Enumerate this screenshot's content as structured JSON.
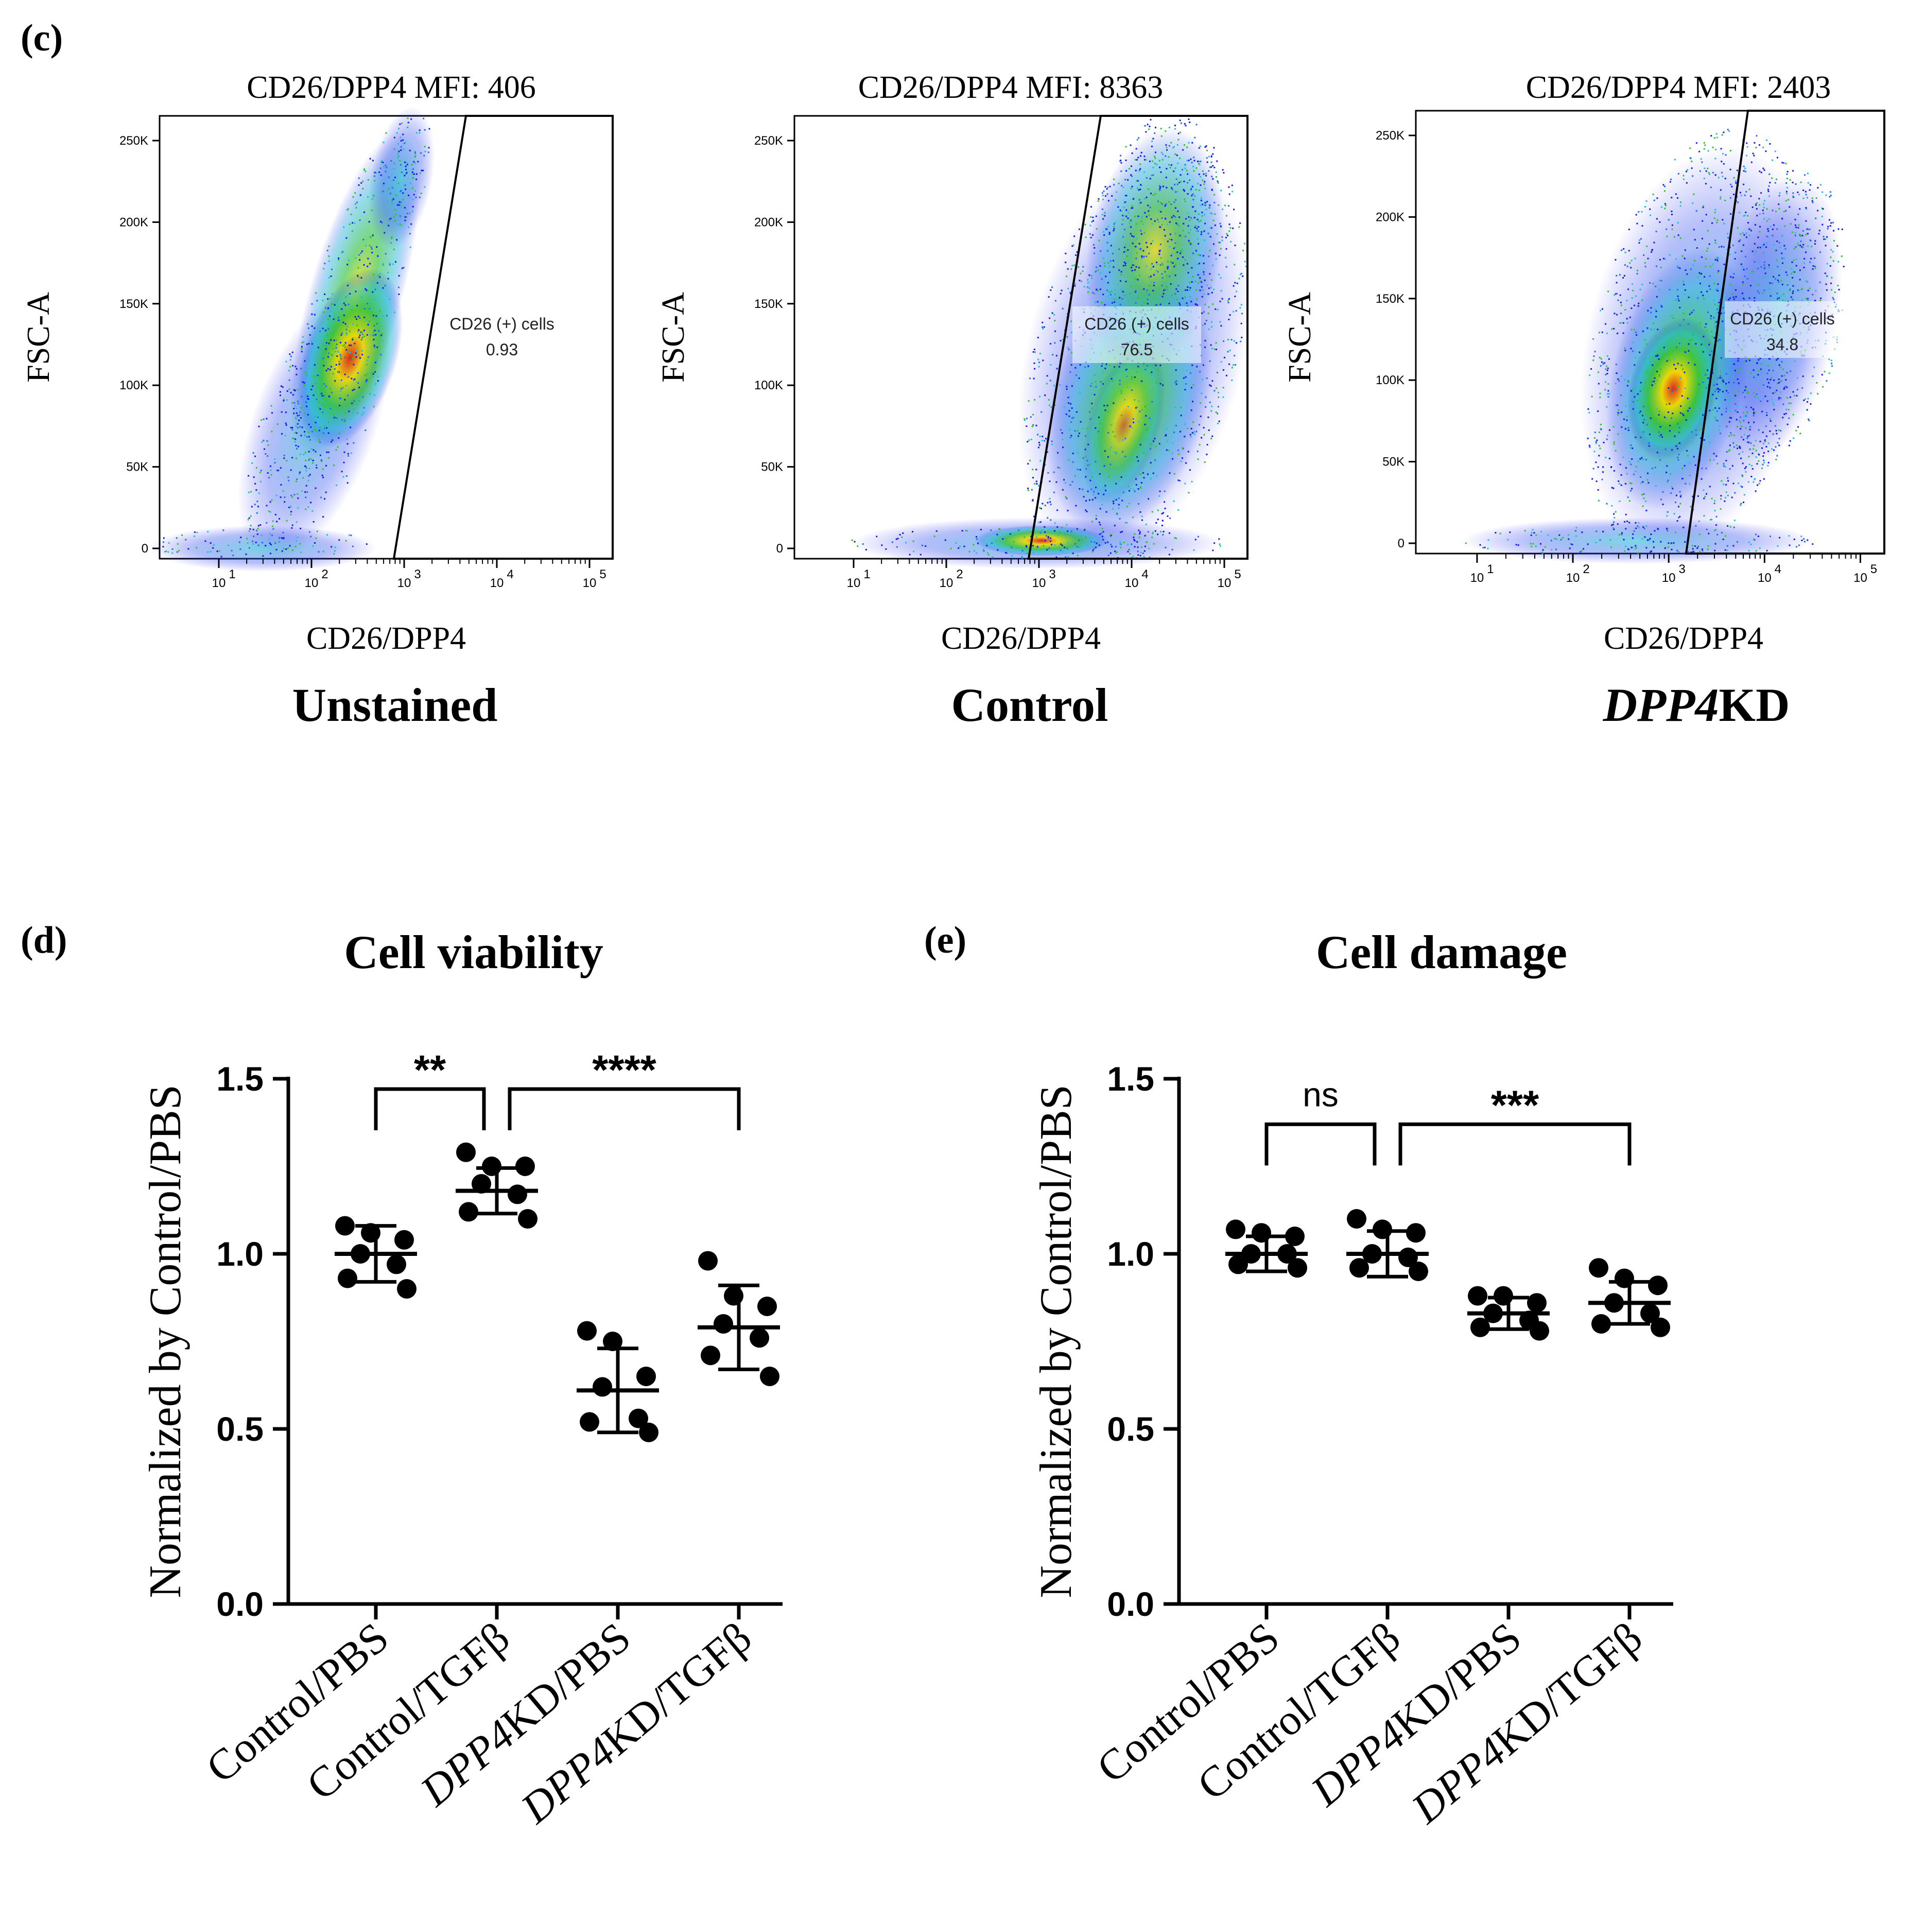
{
  "panel_c": {
    "letter": "(c)",
    "plots": [
      {
        "mfi": "CD26/DPP4 MFI: 406",
        "condition": "Unstained",
        "italic_prefix": "",
        "gate_name": "CD26 (+) cells",
        "gate_value": "0.93",
        "ylabel": "FSC-A",
        "xlabel": "CD26/DPP4"
      },
      {
        "mfi": "CD26/DPP4 MFI: 8363",
        "condition": "Control",
        "italic_prefix": "",
        "gate_name": "CD26 (+) cells",
        "gate_value": "76.5",
        "ylabel": "FSC-A",
        "xlabel": "CD26/DPP4"
      },
      {
        "mfi": "CD26/DPP4 MFI: 2403",
        "condition": "KD",
        "italic_prefix": "DPP4",
        "gate_name": "CD26 (+) cells",
        "gate_value": "34.8",
        "ylabel": "FSC-A",
        "xlabel": "CD26/DPP4"
      }
    ],
    "y_ticks": [
      "250K",
      "200K",
      "150K",
      "100K",
      "50K",
      "0"
    ],
    "x_ticks": [
      "10",
      "10",
      "10",
      "10",
      "10"
    ],
    "x_tick_exponents": [
      "1",
      "2",
      "3",
      "4",
      "5"
    ]
  },
  "panel_d": {
    "letter": "(d)"
  },
  "panel_e": {
    "letter": "(e)"
  },
  "chart_data": [
    {
      "type": "scatter",
      "title": "Cell viability",
      "ylabel": "Normalized by Control/PBS",
      "ylim": [
        0,
        1.5
      ],
      "yticks": [
        "0.0",
        "0.5",
        "1.0",
        "1.5"
      ],
      "categories": [
        "Control/PBS",
        "Control/TGFβ",
        "DPP4KD/PBS",
        "DPP4KD/TGFβ"
      ],
      "italic_prefixes": [
        "",
        "",
        "DPP4",
        "DPP4"
      ],
      "category_rest": [
        "Control/PBS",
        "Control/TGFβ",
        "KD/PBS",
        "KD/TGFβ"
      ],
      "series": [
        {
          "category": "Control/PBS",
          "mean": 1.0,
          "sd": 0.08,
          "points": [
            1.08,
            1.06,
            1.04,
            1.0,
            0.97,
            0.93,
            0.9
          ]
        },
        {
          "category": "Control/TGFβ",
          "mean": 1.18,
          "sd": 0.065,
          "points": [
            1.29,
            1.25,
            1.25,
            1.2,
            1.17,
            1.12,
            1.1
          ]
        },
        {
          "category": "DPP4KD/PBS",
          "mean": 0.61,
          "sd": 0.12,
          "points": [
            0.78,
            0.75,
            0.65,
            0.62,
            0.53,
            0.52,
            0.49
          ]
        },
        {
          "category": "DPP4KD/TGFβ",
          "mean": 0.79,
          "sd": 0.12,
          "points": [
            0.98,
            0.88,
            0.85,
            0.8,
            0.76,
            0.71,
            0.65
          ]
        }
      ],
      "significance": [
        {
          "from": 0,
          "to": 1,
          "label": "**"
        },
        {
          "from": 1,
          "to": 3,
          "label": "****"
        }
      ]
    },
    {
      "type": "scatter",
      "title": "Cell damage",
      "ylabel": "Normalized by Control/PBS",
      "ylim": [
        0,
        1.5
      ],
      "yticks": [
        "0.0",
        "0.5",
        "1.0",
        "1.5"
      ],
      "categories": [
        "Control/PBS",
        "Control/TGFβ",
        "DPP4KD/PBS",
        "DPP4KD/TGFβ"
      ],
      "italic_prefixes": [
        "",
        "",
        "DPP4",
        "DPP4"
      ],
      "category_rest": [
        "Control/PBS",
        "Control/TGFβ",
        "KD/PBS",
        "KD/TGFβ"
      ],
      "series": [
        {
          "category": "Control/PBS",
          "mean": 1.0,
          "sd": 0.05,
          "points": [
            1.07,
            1.06,
            1.05,
            1.0,
            1.0,
            0.97,
            0.96
          ]
        },
        {
          "category": "Control/TGFβ",
          "mean": 1.0,
          "sd": 0.065,
          "points": [
            1.1,
            1.07,
            1.06,
            1.0,
            0.99,
            0.96,
            0.95
          ]
        },
        {
          "category": "DPP4KD/PBS",
          "mean": 0.83,
          "sd": 0.045,
          "points": [
            0.88,
            0.88,
            0.86,
            0.83,
            0.81,
            0.79,
            0.78
          ]
        },
        {
          "category": "DPP4KD/TGFβ",
          "mean": 0.86,
          "sd": 0.06,
          "points": [
            0.96,
            0.93,
            0.91,
            0.86,
            0.83,
            0.8,
            0.79
          ]
        }
      ],
      "significance": [
        {
          "from": 0,
          "to": 1,
          "label": "ns"
        },
        {
          "from": 1,
          "to": 3,
          "label": "***"
        }
      ]
    }
  ]
}
